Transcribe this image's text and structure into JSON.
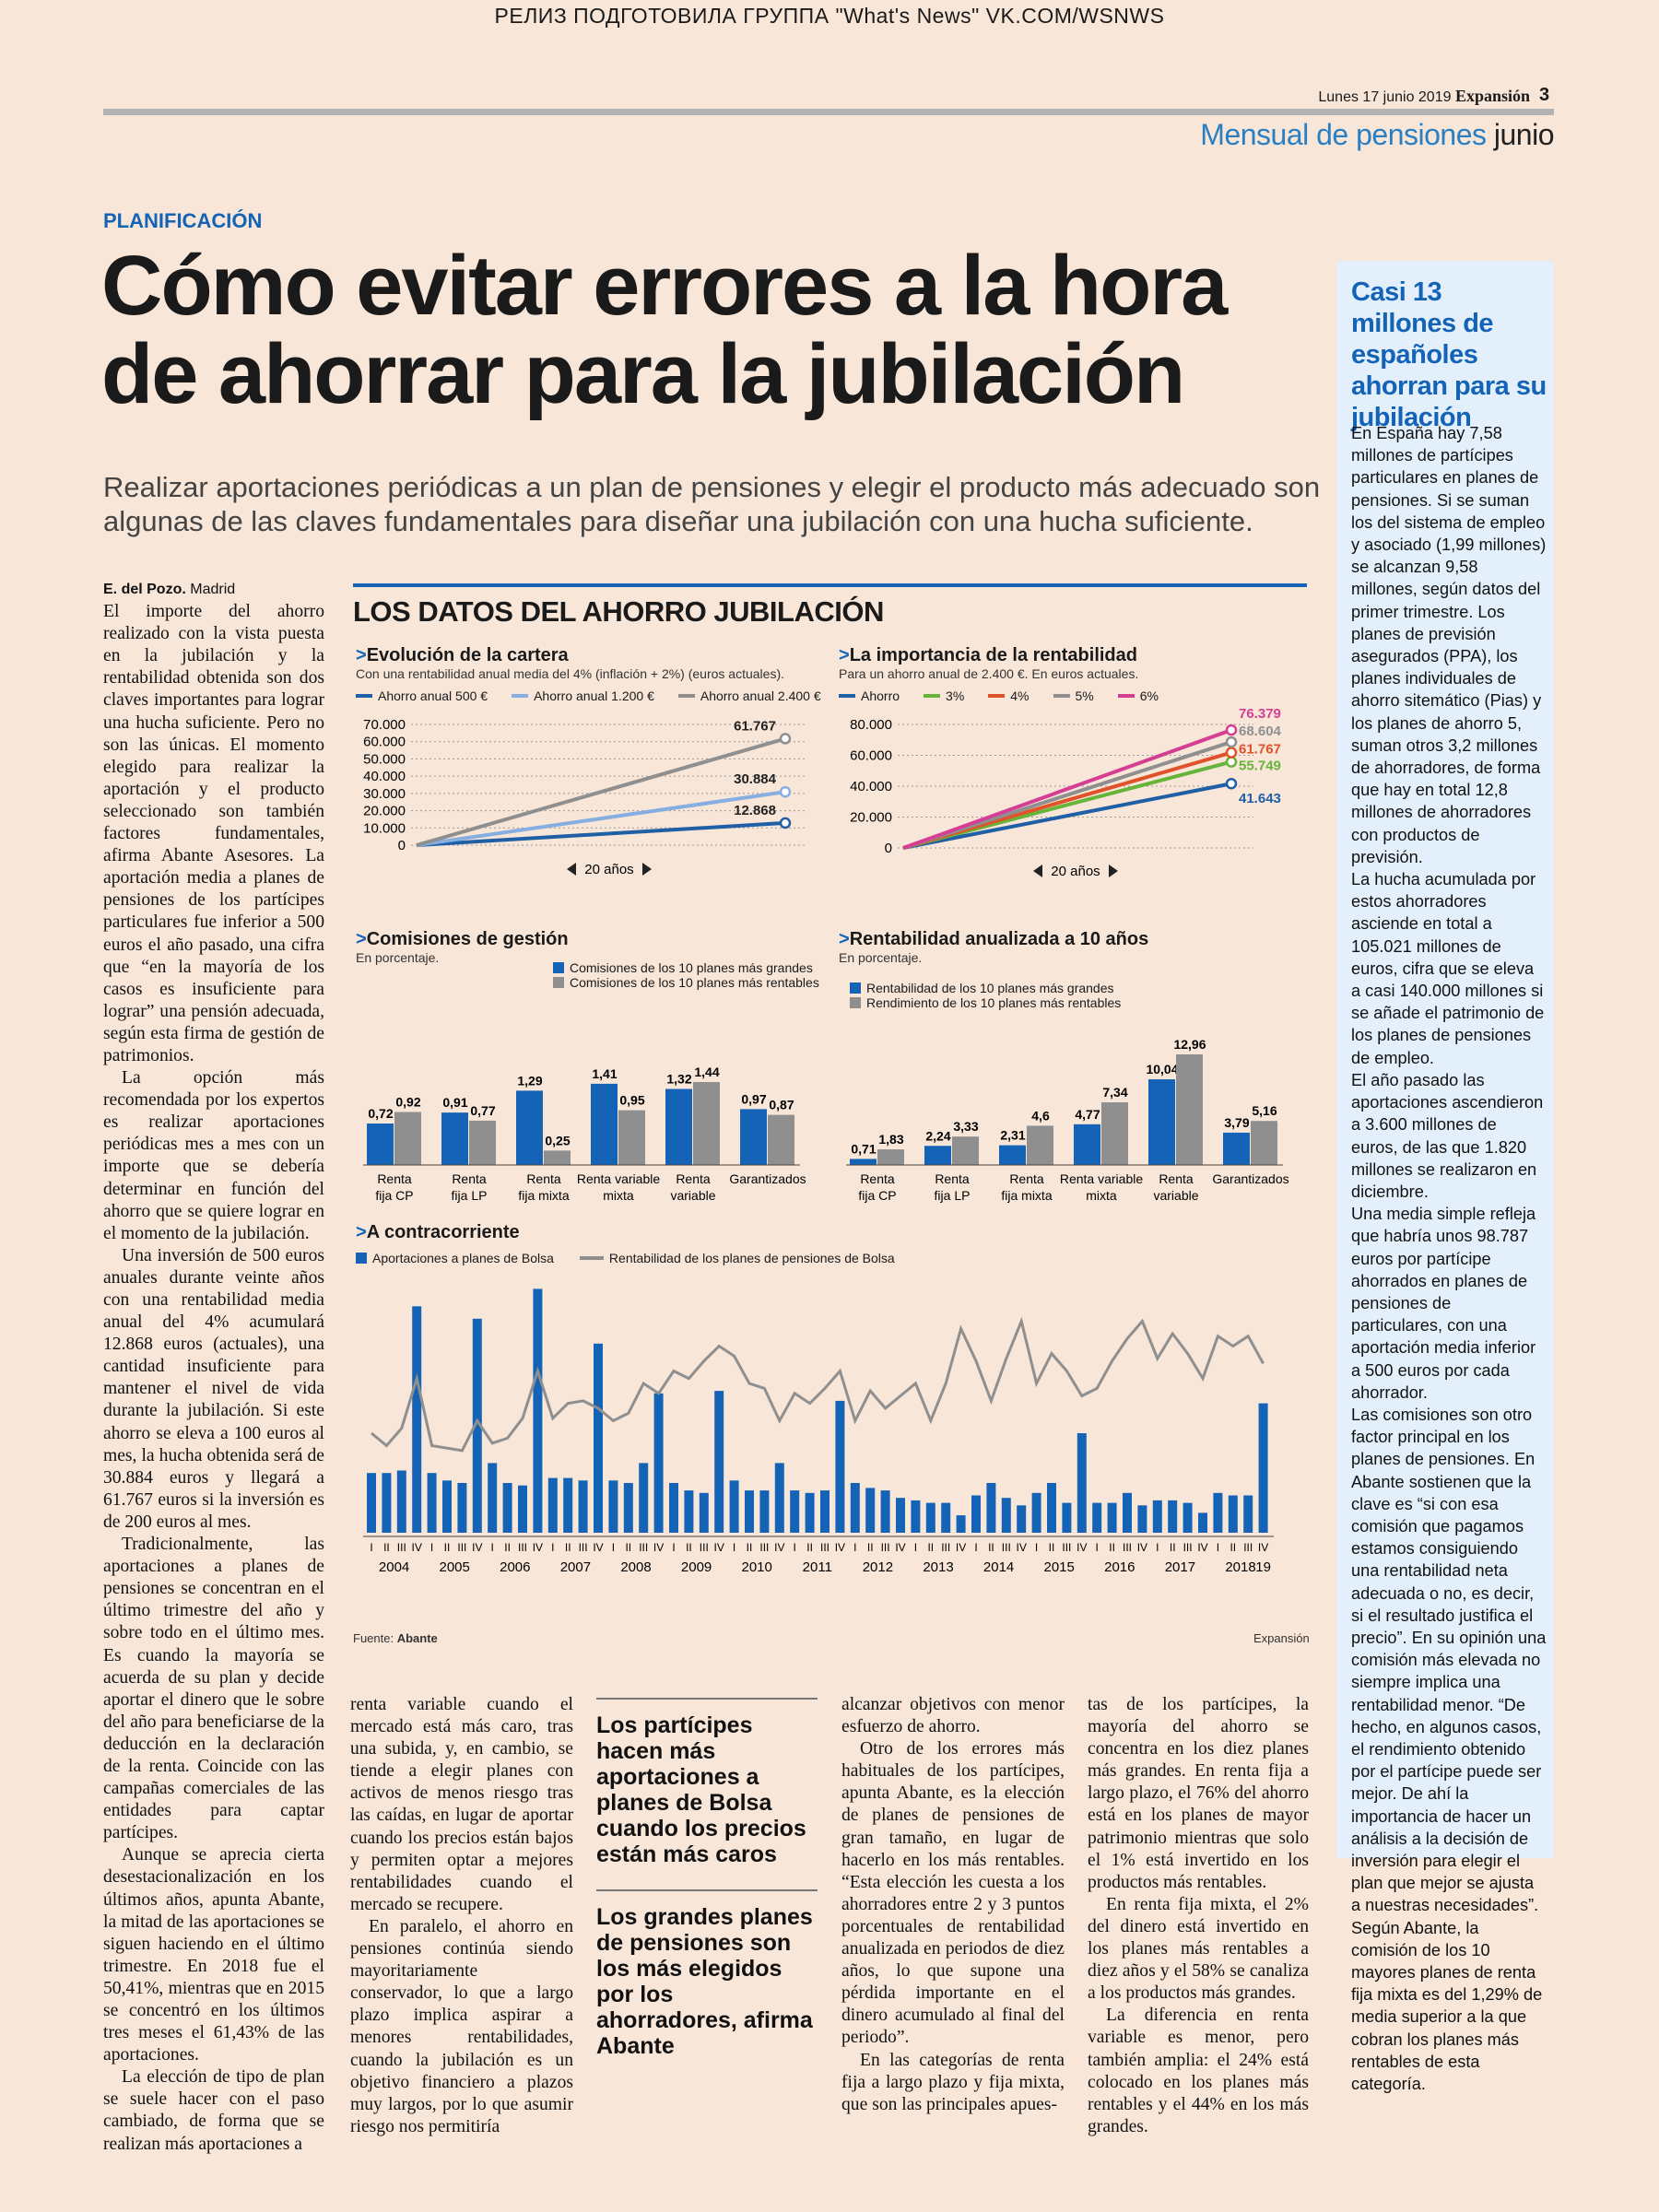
{
  "release_banner": "РЕЛИЗ ПОДГОТОВИЛА ГРУППА \"What's News\" VK.COM/WSNWS",
  "header": {
    "date": "Lunes 17 junio 2019",
    "paper": "Expansión",
    "page": "3",
    "supplement": "Mensual de pensiones",
    "month": "junio"
  },
  "article": {
    "kicker": "PLANIFICACIÓN",
    "headline": "Cómo evitar errores a la hora de ahorrar para la jubilación",
    "deck": "Realizar aportaciones periódicas a un plan de pensiones y elegir el producto más adecuado son algunas de las claves fundamentales para diseñar una jubilación con una hucha suficiente.",
    "author": "E. del Pozo.",
    "city": "Madrid",
    "col1": [
      "El importe del ahorro realizado con la vista puesta en la jubilación y la rentabilidad obtenida son dos claves importantes para lograr una hucha suficiente. Pero no son las únicas. El momento elegido para realizar la aportación y el producto seleccionado son también factores fundamentales, afirma Abante Asesores. La aportación media a planes de pensiones de los partícipes particulares fue inferior a 500 euros el año pasado, una cifra que “en la mayoría de los casos es insuficiente para lograr” una pensión adecuada, según esta firma de gestión de patrimonios.",
      "La opción más recomendada por los expertos es realizar aportaciones periódicas mes a mes con un importe que se debería determinar en función del ahorro que se quiere lograr en el momento de la jubilación.",
      "Una inversión de 500 euros anuales durante veinte años con una rentabilidad media anual del 4% acumulará 12.868 euros (actuales), una cantidad insuficiente para mantener el nivel de vida durante la jubilación. Si este ahorro se eleva a 100 euros al mes, la hucha obtenida será de 30.884 euros y llegará a 61.767 euros si la inversión es de 200 euros al mes.",
      "Tradicionalmente, las aportaciones a planes de pensiones se concentran en el último trimestre del año y sobre todo en el último mes. Es cuando la mayoría se acuerda de su plan y decide aportar el dinero que le sobre del año para beneficiarse de la deducción en la declaración de la renta. Coincide con las campañas comerciales de las entidades para captar partícipes.",
      "Aunque se aprecia cierta desestacionalización en los últimos años, apunta Abante, la mitad de las aportaciones se siguen haciendo en el último trimestre. En 2018 fue el 50,41%, mientras que en 2015 se concentró en los últimos tres meses el 61,43% de las aportaciones.",
      "La elección de tipo de plan se suele hacer con el paso cambiado, de forma que se realizan más aportaciones a"
    ],
    "col2": [
      "renta variable cuando el mercado está más caro, tras una subida, y, en cambio, se tiende a elegir planes con activos de menos riesgo tras las caídas, en lugar de aportar cuando los precios están bajos y permiten optar a mejores rentabilidades cuando el mercado se recupere.",
      "En paralelo, el ahorro en pensiones continúa siendo mayoritariamente conservador, lo que a largo plazo implica aspirar a menores rentabilidades, cuando la jubilación es un objetivo financiero a plazos muy largos, por lo que asumir riesgo nos permitiría"
    ],
    "pull_quotes": [
      "Los partícipes hacen más aportaciones a planes de Bolsa cuando los precios están más caros",
      "Los grandes planes de pensiones son los más elegidos por los ahorradores, afirma Abante"
    ],
    "col4": [
      "alcanzar objetivos con menor esfuerzo de ahorro.",
      "Otro de los errores más habituales de los partícipes, apunta Abante, es la elección de planes de pensiones de gran tamaño, en lugar de hacerlo en los más rentables. “Esta elección les cuesta a los ahorradores entre 2 y 3 puntos porcentuales de rentabilidad anualizada en periodos de diez años, lo que supone una pérdida importante en el dinero acumulado al final del periodo”.",
      "En las categorías de renta fija a largo plazo y fija mixta, que son las principales apues-"
    ],
    "col5": [
      "tas de los partícipes, la mayoría del ahorro se concentra en los diez planes más grandes. En renta fija a largo plazo, el 76% del ahorro está en los planes de mayor patrimonio mientras que solo el 1% está invertido en los productos más rentables.",
      "En renta fija mixta, el 2% del dinero está invertido en los planes más rentables a diez años y el 58% se canaliza a los productos más grandes.",
      "La diferencia en renta variable es menor, pero también amplia: el 24% está colocado en los planes más rentables y el 44% en los más grandes."
    ]
  },
  "sidebar": {
    "title": "Casi 13 millones de españoles ahorran para su jubilación",
    "paragraphs": [
      "En España hay 7,58 millones de partícipes particulares en planes de pensiones. Si se suman los del sistema de empleo y asociado (1,99 millones) se alcanzan 9,58 millones, según datos del primer trimestre. Los planes de previsión asegurados (PPA), los planes individuales de ahorro sitemático (Pias) y los planes de ahorro 5, suman otros 3,2 millones de ahorradores, de forma que hay en total 12,8 millones de ahorradores con productos de previsión.",
      "La hucha acumulada por estos ahorradores asciende en total a 105.021 millones de euros, cifra que se eleva a casi 140.000 millones si se añade el patrimonio de los planes de pensiones de empleo.",
      "El año pasado las aportaciones ascendieron a 3.600 millones de euros, de las que 1.820 millones se realizaron en diciembre.",
      "Una media simple refleja que habría unos 98.787 euros por partícipe ahorrados en planes de pensiones de particulares, con una aportación media inferior a 500 euros por cada ahorrador.",
      "Las comisiones son otro factor principal en los planes de pensiones. En Abante sostienen que la clave es “si con esa comisión que pagamos estamos consiguiendo una rentabilidad neta adecuada o no, es decir, si el resultado justifica el precio”. En su opinión una comisión más elevada no siempre implica una rentabilidad menor. “De hecho, en algunos casos, el rendimiento obtenido por el partícipe puede ser mejor. De ahí la importancia de hacer un análisis a la decisión de inversión para elegir el plan que mejor se ajusta a nuestras necesidades”. Según Abante, la comisión de los 10 mayores planes de renta fija mixta es del 1,29% de media superior a la que cobran los planes más rentables de esta categoría."
    ]
  },
  "graphic": {
    "title": "LOS DATOS DEL AHORRO JUBILACIÓN",
    "source_label": "Fuente:",
    "source": "Abante",
    "credit": "Expansión",
    "arrow": ">",
    "years_label": "20 años"
  },
  "chart_data": [
    {
      "type": "line",
      "title": "Evolución de la cartera",
      "subtitle": "Con una rentabilidad anual media del 4% (inflación + 2%) (euros actuales).",
      "x": [
        0,
        20
      ],
      "yticks": [
        "70.000",
        "60.000",
        "50.000",
        "40.000",
        "30.000",
        "20.000",
        "10.000",
        "0"
      ],
      "ylim": [
        0,
        70000
      ],
      "series": [
        {
          "name": "Ahorro anual 500 €",
          "color": "#1f5fa6",
          "values": [
            0,
            12868
          ],
          "label": "12.868"
        },
        {
          "name": "Ahorro anual 1.200 €",
          "color": "#86aee0",
          "values": [
            0,
            30884
          ],
          "label": "30.884"
        },
        {
          "name": "Ahorro anual 2.400 €",
          "color": "#8f8f8f",
          "values": [
            0,
            61767
          ],
          "label": "61.767"
        }
      ]
    },
    {
      "type": "line",
      "title": "La importancia de la rentabilidad",
      "subtitle": "Para un ahorro anual de 2.400 €. En euros actuales.",
      "x": [
        0,
        20
      ],
      "yticks": [
        "80.000",
        "60.000",
        "40.000",
        "20.000",
        "0"
      ],
      "ylim": [
        0,
        80000
      ],
      "series": [
        {
          "name": "Ahorro",
          "color": "#1f5fa6",
          "values": [
            0,
            41643
          ],
          "label": "41.643"
        },
        {
          "name": "3%",
          "color": "#66b43a",
          "values": [
            0,
            55749
          ],
          "label": "55.749"
        },
        {
          "name": "4%",
          "color": "#e0522a",
          "values": [
            0,
            61767
          ],
          "label": "61.767"
        },
        {
          "name": "5%",
          "color": "#8f8f8f",
          "values": [
            0,
            68604
          ],
          "label": "68.604"
        },
        {
          "name": "6%",
          "color": "#d43f94",
          "values": [
            0,
            76379
          ],
          "label": "76.379"
        }
      ]
    },
    {
      "type": "bar",
      "title": "Comisiones de gestión",
      "subtitle": "En porcentaje.",
      "categories": [
        "Renta fija CP",
        "Renta fija LP",
        "Renta fija mixta",
        "Renta variable mixta",
        "Renta variable",
        "Garantizados"
      ],
      "category_lines": [
        [
          "Renta",
          "fija CP"
        ],
        [
          "Renta",
          "fija LP"
        ],
        [
          "Renta",
          "fija mixta"
        ],
        [
          "Renta variable",
          "mixta"
        ],
        [
          "Renta",
          "variable"
        ],
        [
          "Garantizados"
        ]
      ],
      "series": [
        {
          "name": "Comisiones de los 10 planes más grandes",
          "color": "#1463b6",
          "values": [
            0.72,
            0.91,
            1.29,
            1.41,
            1.32,
            0.97
          ],
          "labels": [
            "0,72",
            "0,91",
            "1,29",
            "1,41",
            "1,32",
            "0,97"
          ]
        },
        {
          "name": "Comisiones de los 10 planes más rentables",
          "color": "#8f8f8f",
          "values": [
            0.92,
            0.77,
            0.25,
            0.95,
            1.44,
            0.87
          ],
          "labels": [
            "0,92",
            "0,77",
            "0,25",
            "0,95",
            "1,44",
            "0,87"
          ]
        }
      ]
    },
    {
      "type": "bar",
      "title": "Rentabilidad anualizada a 10 años",
      "subtitle": "En porcentaje.",
      "categories": [
        "Renta fija CP",
        "Renta fija LP",
        "Renta fija mixta",
        "Renta variable mixta",
        "Renta variable",
        "Garantizados"
      ],
      "category_lines": [
        [
          "Renta",
          "fija CP"
        ],
        [
          "Renta",
          "fija LP"
        ],
        [
          "Renta",
          "fija mixta"
        ],
        [
          "Renta variable",
          "mixta"
        ],
        [
          "Renta",
          "variable"
        ],
        [
          "Garantizados"
        ]
      ],
      "series": [
        {
          "name": "Rentabilidad de los 10 planes más grandes",
          "color": "#1463b6",
          "values": [
            0.71,
            2.24,
            2.31,
            4.77,
            10.04,
            3.79
          ],
          "labels": [
            "0,71",
            "2,24",
            "2,31",
            "4,77",
            "10,04",
            "3,79"
          ]
        },
        {
          "name": "Rendimiento de los 10 planes más rentables",
          "color": "#8f8f8f",
          "values": [
            1.83,
            3.33,
            4.6,
            7.34,
            12.96,
            5.16
          ],
          "labels": [
            "1,83",
            "3,33",
            "4,6",
            "7,34",
            "12,96",
            "5,16"
          ]
        }
      ]
    },
    {
      "type": "bar",
      "title": "A contracorriente",
      "quarters": [
        "I",
        "II",
        "III",
        "IV"
      ],
      "years": [
        "2004",
        "2005",
        "2006",
        "2007",
        "2008",
        "2009",
        "2010",
        "2011",
        "2012",
        "2013",
        "2014",
        "2015",
        "2016",
        "2017",
        "2018",
        "19"
      ],
      "series": [
        {
          "name": "Aportaciones a planes de Bolsa",
          "color": "#1463b6",
          "kind": "bar",
          "values": [
            24,
            24,
            25,
            91,
            24,
            21,
            20,
            86,
            28,
            20,
            19,
            98,
            22,
            22,
            21,
            76,
            21,
            20,
            28,
            56,
            20,
            17,
            16,
            57,
            21,
            17,
            17,
            28,
            17,
            16,
            17,
            53,
            20,
            18,
            17,
            14,
            13,
            12,
            12,
            7,
            15,
            20,
            14,
            11,
            16,
            20,
            12,
            40,
            12,
            12,
            16,
            11,
            13,
            13,
            12,
            8,
            16,
            15,
            15,
            52
          ]
        },
        {
          "name": "Rentabilidad de los planes de pensiones de Bolsa",
          "color": "#8f8f8f",
          "kind": "line",
          "values": [
            40,
            35,
            42,
            62,
            35,
            34,
            33,
            45,
            36,
            38,
            46,
            65,
            46,
            52,
            53,
            50,
            45,
            48,
            60,
            56,
            65,
            62,
            69,
            75,
            71,
            60,
            58,
            45,
            56,
            52,
            58,
            65,
            45,
            57,
            50,
            55,
            60,
            45,
            60,
            82,
            69,
            53,
            70,
            85,
            60,
            72,
            65,
            55,
            58,
            69,
            78,
            85,
            70,
            80,
            72,
            62,
            79,
            75,
            79,
            68
          ]
        }
      ]
    }
  ]
}
